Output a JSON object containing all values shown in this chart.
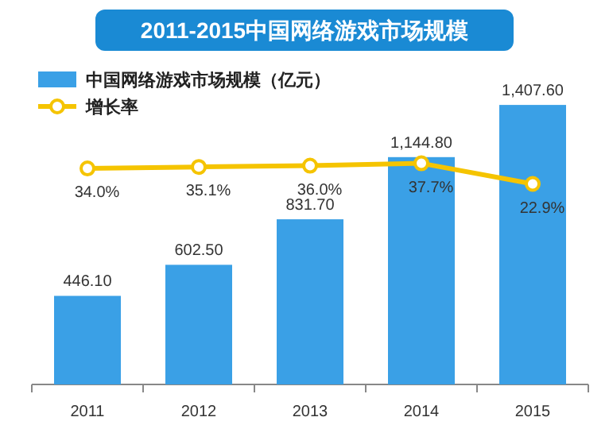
{
  "chart_data": {
    "type": "bar",
    "title": "2011-2015中国网络游戏市场规模",
    "categories": [
      "2011",
      "2012",
      "2013",
      "2014",
      "2015"
    ],
    "series": [
      {
        "name": "中国网络游戏市场规模（亿元）",
        "color": "#3aa0e6",
        "values": [
          446.1,
          602.5,
          831.7,
          1144.8,
          1407.6
        ],
        "value_labels": [
          "446.10",
          "602.50",
          "831.70",
          "1,144.80",
          "1,407.60"
        ]
      },
      {
        "name": "增长率",
        "type": "line",
        "axis": "y2",
        "color": "#f5c400",
        "marker": "circle",
        "values": [
          34.0,
          35.1,
          36.0,
          37.7,
          22.9
        ],
        "value_labels": [
          "34.0%",
          "35.1%",
          "36.0%",
          "37.7%",
          "22.9%"
        ]
      }
    ],
    "ylim": [
      0,
      1600
    ],
    "y2lim": [
      -121,
      107
    ],
    "tick_labels": "x",
    "legend": "top left"
  }
}
